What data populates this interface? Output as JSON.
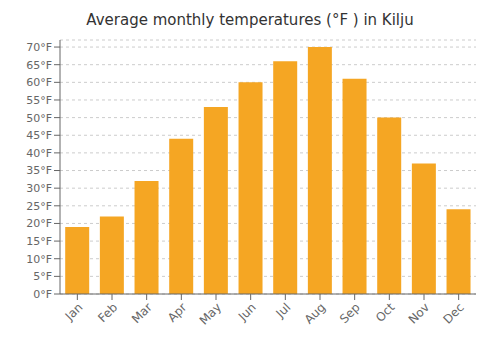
{
  "chart_data": {
    "type": "bar",
    "title": "Average monthly temperatures (°F ) in Kilju",
    "categories": [
      "Jan",
      "Feb",
      "Mar",
      "Apr",
      "May",
      "Jun",
      "Jul",
      "Aug",
      "Sep",
      "Oct",
      "Nov",
      "Dec"
    ],
    "values": [
      19,
      22,
      32,
      44,
      53,
      60,
      66,
      70,
      61,
      50,
      37,
      24
    ],
    "color": "#F5A623",
    "ylim": [
      0,
      72
    ],
    "yticks": [
      {
        "value": 0,
        "label": "0°F"
      },
      {
        "value": 5,
        "label": "5°F"
      },
      {
        "value": 10,
        "label": "10°F"
      },
      {
        "value": 15,
        "label": "15°F"
      },
      {
        "value": 20,
        "label": "20°F"
      },
      {
        "value": 25,
        "label": "25°F"
      },
      {
        "value": 30,
        "label": "30°F"
      },
      {
        "value": 35,
        "label": "35°F"
      },
      {
        "value": 40,
        "label": "40°F"
      },
      {
        "value": 45,
        "label": "45°F"
      },
      {
        "value": 50,
        "label": "50°F"
      },
      {
        "value": 55,
        "label": "55°F"
      },
      {
        "value": 60,
        "label": "60°F"
      },
      {
        "value": 65,
        "label": "65°F"
      },
      {
        "value": 70,
        "label": "70°F"
      }
    ],
    "grid": true
  }
}
